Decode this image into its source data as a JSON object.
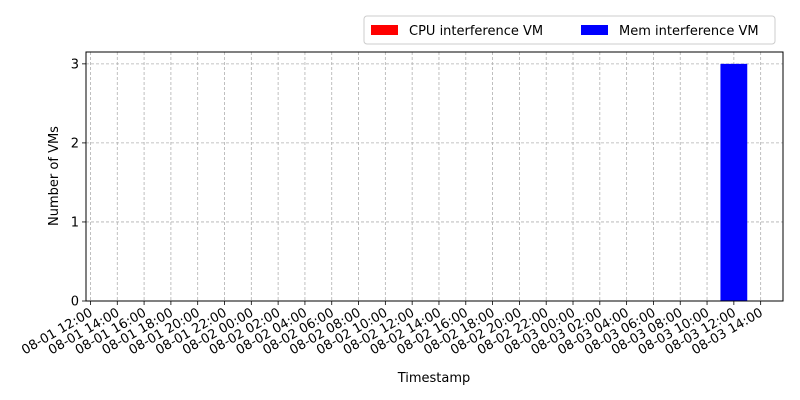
{
  "chart_data": {
    "type": "bar",
    "xlabel": "Timestamp",
    "ylabel": "Number of VMs",
    "x_ticks": [
      "08-01 12:00",
      "08-01 14:00",
      "08-01 16:00",
      "08-01 18:00",
      "08-01 20:00",
      "08-01 22:00",
      "08-02 00:00",
      "08-02 02:00",
      "08-02 04:00",
      "08-02 06:00",
      "08-02 08:00",
      "08-02 10:00",
      "08-02 12:00",
      "08-02 14:00",
      "08-02 16:00",
      "08-02 18:00",
      "08-02 20:00",
      "08-02 22:00",
      "08-03 00:00",
      "08-03 02:00",
      "08-03 04:00",
      "08-03 06:00",
      "08-03 08:00",
      "08-03 10:00",
      "08-03 12:00",
      "08-03 14:00"
    ],
    "y_ticks": [
      0,
      1,
      2,
      3
    ],
    "ylim": [
      0,
      3.15
    ],
    "xlim": [
      "08-01 11:40",
      "08-03 15:40"
    ],
    "grid": true,
    "legend_position": "top-right",
    "series": [
      {
        "name": "CPU interference VM",
        "color": "#ff0000",
        "points": []
      },
      {
        "name": "Mem interference VM",
        "color": "#0000ff",
        "points": [
          {
            "x": "08-03 12:00",
            "y": 3
          }
        ]
      }
    ],
    "bar_width_hours": 2
  }
}
